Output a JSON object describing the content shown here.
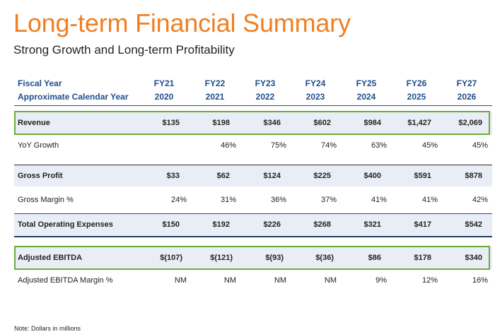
{
  "title": "Long-term Financial Summary",
  "subtitle": "Strong Growth and Long-term Profitability",
  "header": {
    "row1_label": "Fiscal Year",
    "row2_label": "Approximate Calendar Year",
    "fiscal_years": [
      "FY21",
      "FY22",
      "FY23",
      "FY24",
      "FY25",
      "FY26",
      "FY27"
    ],
    "calendar_years": [
      "2020",
      "2021",
      "2022",
      "2023",
      "2024",
      "2025",
      "2026"
    ]
  },
  "rows": [
    {
      "label": "Revenue",
      "values": [
        "$135",
        "$198",
        "$346",
        "$602",
        "$984",
        "$1,427",
        "$2,069"
      ]
    },
    {
      "label": "YoY Growth",
      "values": [
        "",
        "46%",
        "75%",
        "74%",
        "63%",
        "45%",
        "45%"
      ]
    },
    {
      "label": "Gross Profit",
      "values": [
        "$33",
        "$62",
        "$124",
        "$225",
        "$400",
        "$591",
        "$878"
      ]
    },
    {
      "label": "Gross Margin %",
      "values": [
        "24%",
        "31%",
        "36%",
        "37%",
        "41%",
        "41%",
        "42%"
      ]
    },
    {
      "label": "Total Operating Expenses",
      "values": [
        "$150",
        "$192",
        "$226",
        "$268",
        "$321",
        "$417",
        "$542"
      ]
    },
    {
      "label": "Adjusted EBITDA",
      "values": [
        "$(107)",
        "$(121)",
        "$(93)",
        "$(36)",
        "$86",
        "$178",
        "$340"
      ]
    },
    {
      "label": "Adjusted EBITDA Margin %",
      "values": [
        "NM",
        "NM",
        "NM",
        "NM",
        "9%",
        "12%",
        "16%"
      ]
    }
  ],
  "note": "Note: Dollars in millions",
  "colors": {
    "title": "#f07f22",
    "header_text": "#1f4e8c",
    "highlight_border": "#6aaa3a",
    "band": "#e9eef6"
  }
}
